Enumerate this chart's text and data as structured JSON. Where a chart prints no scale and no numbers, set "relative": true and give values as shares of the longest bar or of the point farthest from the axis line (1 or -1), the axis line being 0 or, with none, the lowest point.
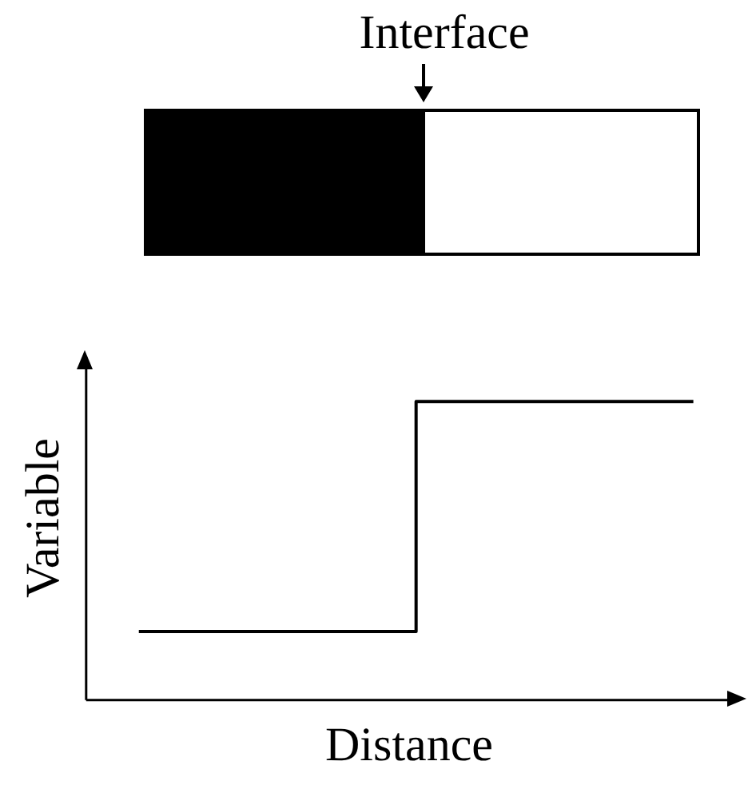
{
  "chart_data": {
    "type": "step",
    "relative": true,
    "xlabel": "Distance",
    "ylabel": "Variable",
    "annotations": [
      "Interface"
    ],
    "categories": [
      null,
      null,
      null
    ],
    "series": [
      {
        "color": "#000000",
        "values": [
          0.23,
          1,
          1
        ]
      }
    ],
    "line_style": "solid",
    "marker": "none",
    "grid": false
  }
}
